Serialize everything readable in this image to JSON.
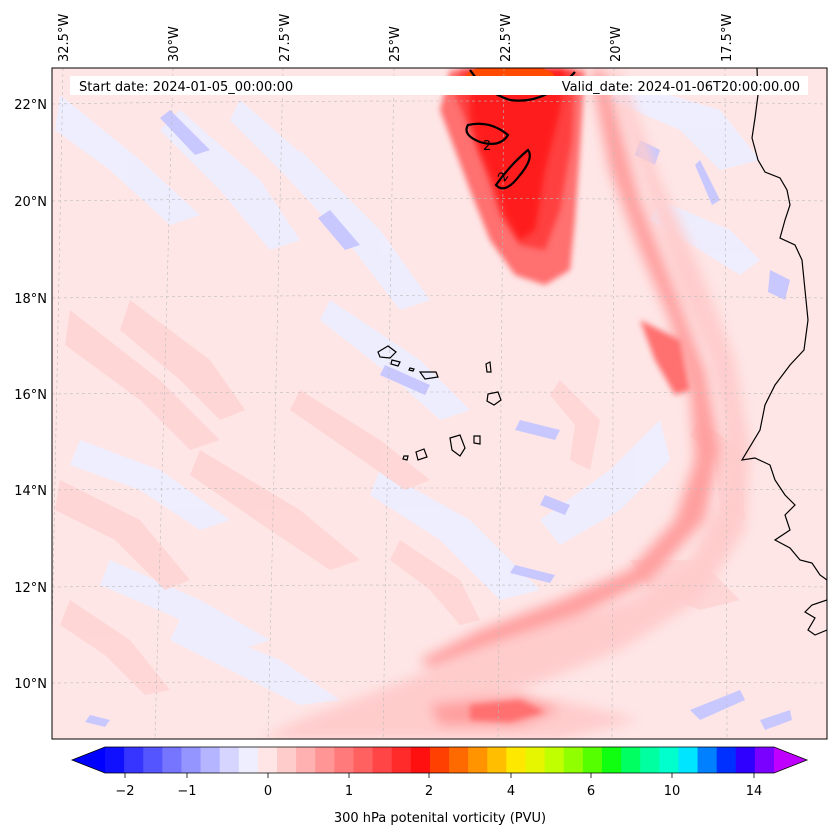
{
  "header": {
    "start_date": "Start date: 2024-01-05_00:00:00",
    "valid_date": "Valid_date: 2024-01-06T20:00:00.00"
  },
  "longitude_labels": [
    "32.5°W",
    "30°W",
    "27.5°W",
    "25°W",
    "22.5°W",
    "20°W",
    "17.5°W"
  ],
  "latitude_labels": [
    "22°N",
    "20°N",
    "18°N",
    "16°N",
    "14°N",
    "12°N",
    "10°N"
  ],
  "contour_labels": [
    "2",
    "2"
  ],
  "colorbar": {
    "label": "300 hPa potenital vorticity (PVU)",
    "tick_labels": [
      "−2",
      "−1",
      "0",
      "1",
      "2",
      "4",
      "6",
      "10",
      "14"
    ],
    "colors": [
      "#1010ff",
      "#3535ff",
      "#5555ff",
      "#7575ff",
      "#9595ff",
      "#b5b5ff",
      "#d5d5ff",
      "#eeeeff",
      "#ffe5e5",
      "#ffcccc",
      "#ffb0b0",
      "#ff9595",
      "#ff7a7a",
      "#ff6060",
      "#ff4545",
      "#ff2a2a",
      "#ff1010",
      "#ff4000",
      "#ff6a00",
      "#ff9400",
      "#ffbf00",
      "#ffe800",
      "#e6f500",
      "#c0ff00",
      "#90ff00",
      "#55ff00",
      "#10ff10",
      "#00ff60",
      "#00ffa0",
      "#00ffcc",
      "#00e5ff",
      "#0080ff",
      "#0030ff",
      "#3000ff",
      "#7a00ff"
    ],
    "under_color": "#0000ff",
    "over_color": "#c000ff"
  },
  "colors": {
    "background": "#fee6e6",
    "coastline": "#000000",
    "gridline": "#bbbbbb"
  }
}
